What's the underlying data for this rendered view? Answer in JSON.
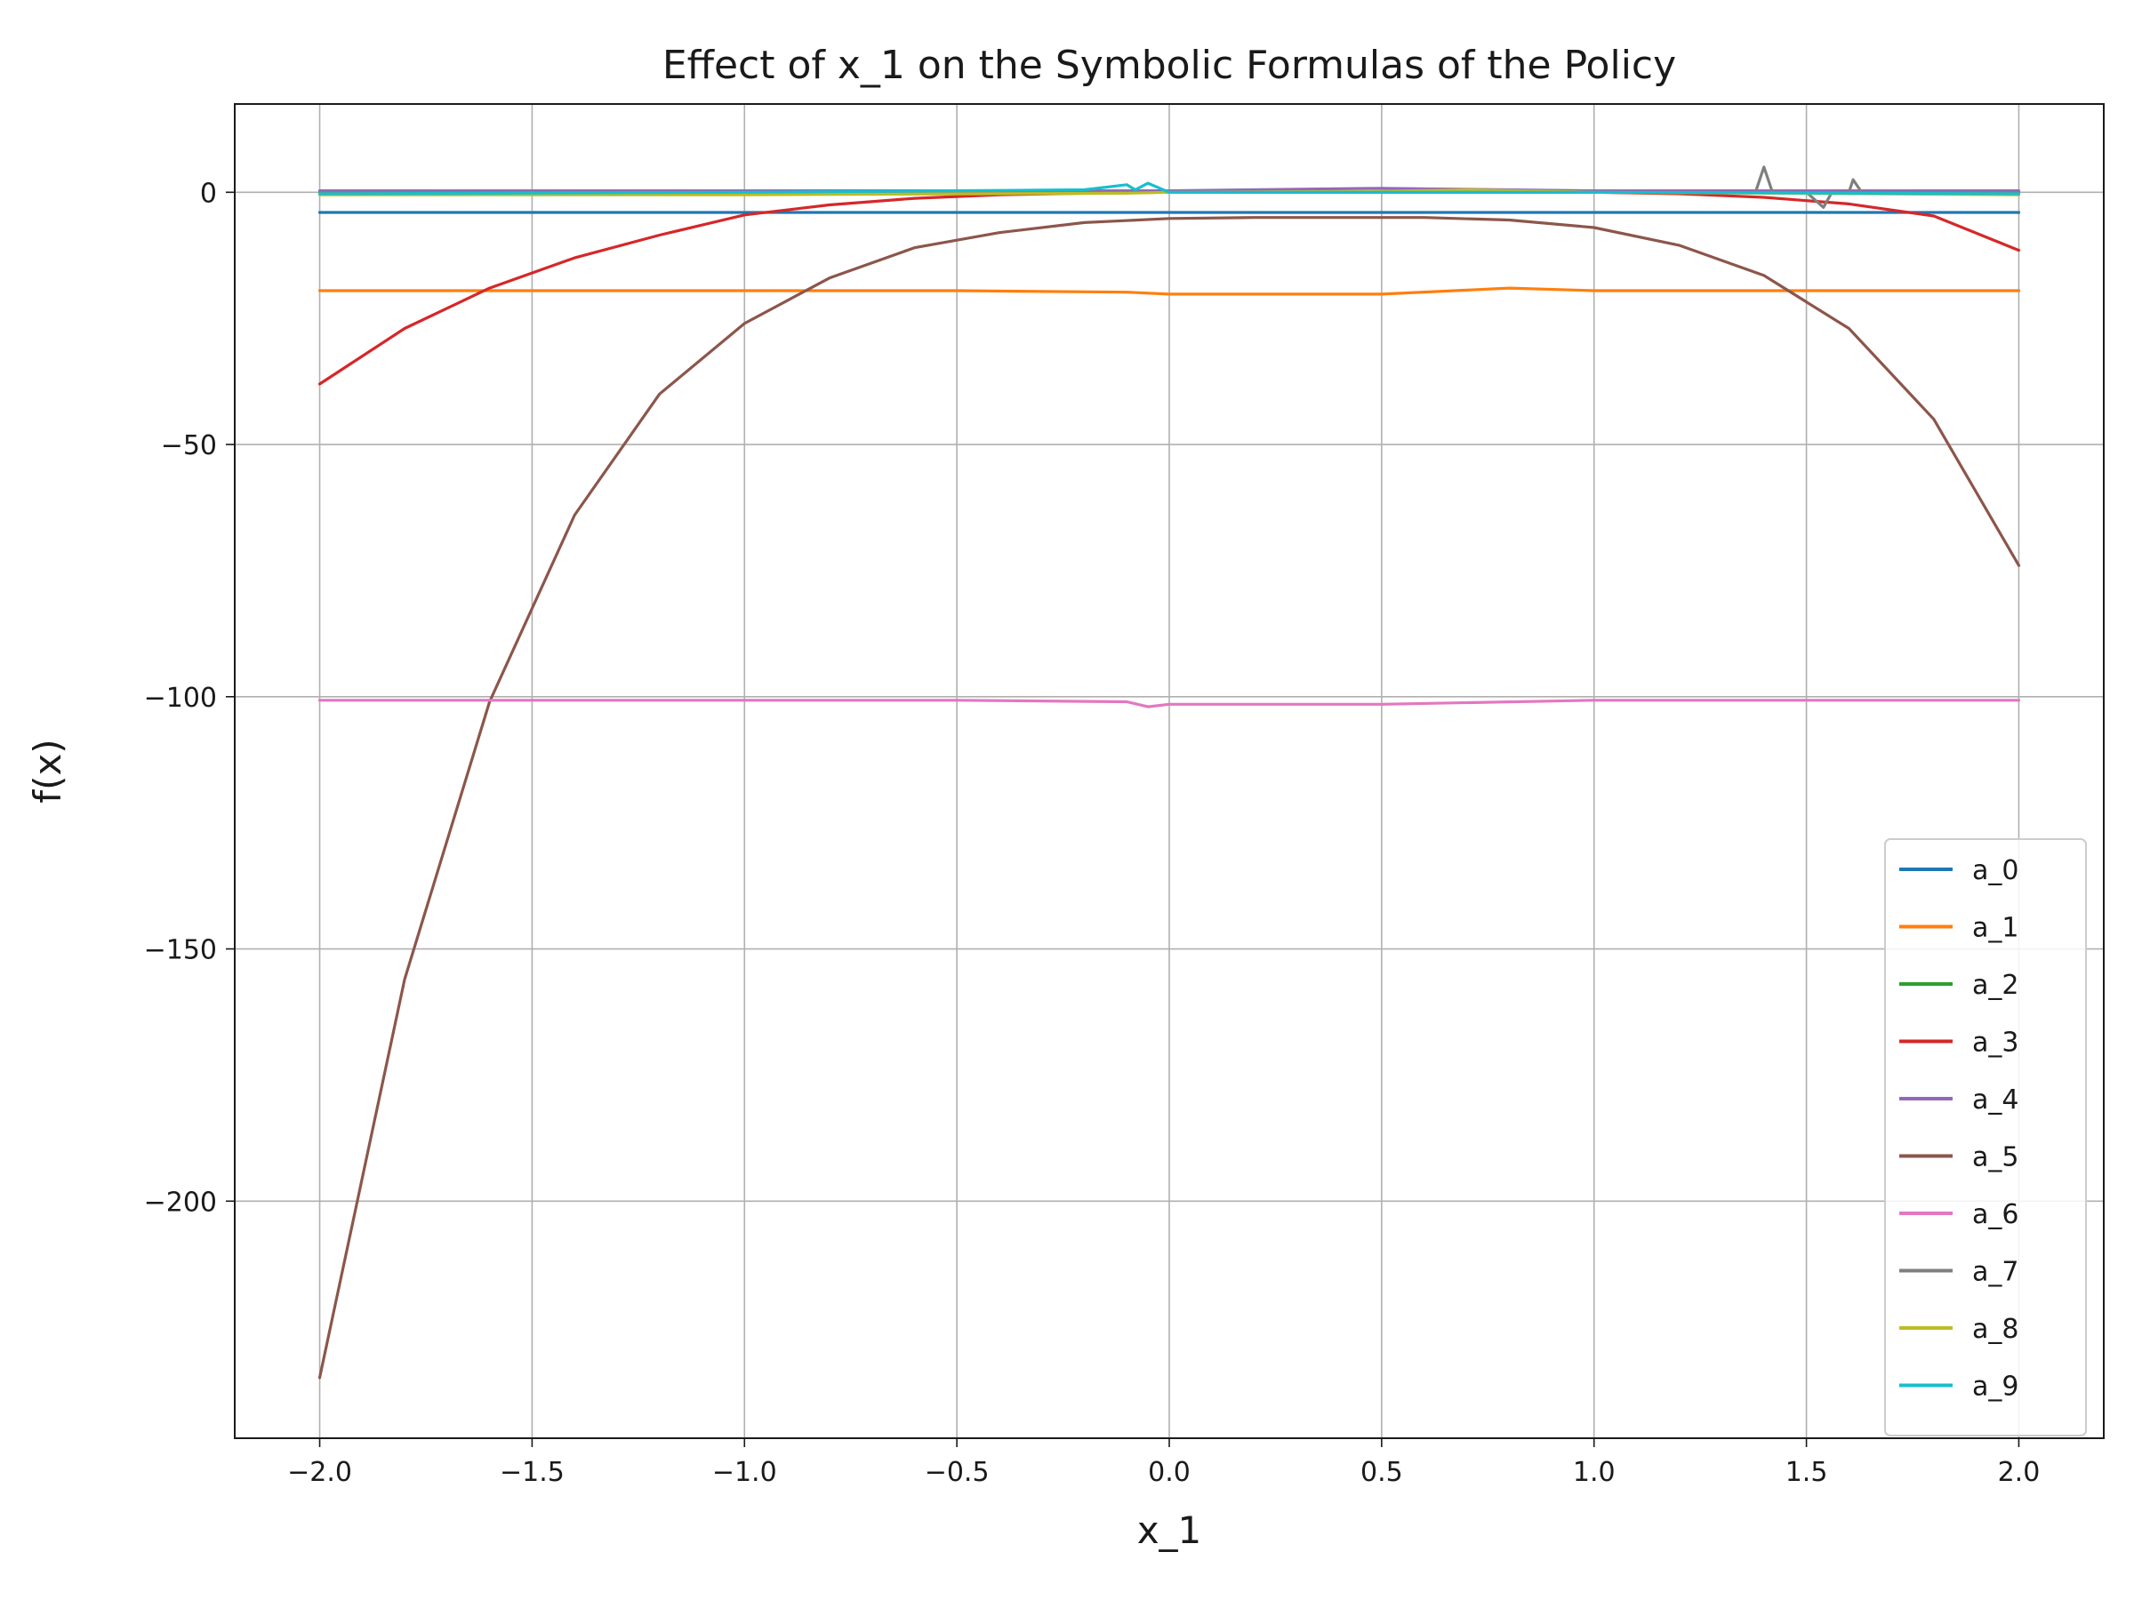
{
  "chart_data": {
    "type": "line",
    "title": "Effect of x_1 on the Symbolic Formulas of the Policy",
    "xlabel": "x_1",
    "ylabel": "f(x)",
    "xlim": [
      -2.2,
      2.2
    ],
    "ylim": [
      -247,
      17.5
    ],
    "xticks": [
      -2.0,
      -1.5,
      -1.0,
      -0.5,
      0.0,
      0.5,
      1.0,
      1.5,
      2.0
    ],
    "xtick_labels": [
      "−2.0",
      "−1.5",
      "−1.0",
      "−0.5",
      "0.0",
      "0.5",
      "1.0",
      "1.5",
      "2.0"
    ],
    "yticks": [
      0,
      -50,
      -100,
      -150,
      -200
    ],
    "ytick_labels": [
      "0",
      "−50",
      "−100",
      "−150",
      "−200"
    ],
    "grid": true,
    "legend_position": "lower-right",
    "series": [
      {
        "name": "a_0",
        "color": "#1f77b4",
        "x": [
          -2.0,
          -1.5,
          -1.0,
          -0.5,
          -0.1,
          0.0,
          0.5,
          1.0,
          1.5,
          2.0
        ],
        "y": [
          -4.0,
          -4.0,
          -4.0,
          -4.0,
          -4.0,
          -4.0,
          -4.0,
          -4.0,
          -4.0,
          -4.0
        ]
      },
      {
        "name": "a_1",
        "color": "#ff7f0e",
        "x": [
          -2.0,
          -1.5,
          -1.0,
          -0.5,
          -0.1,
          0.0,
          0.5,
          0.8,
          1.0,
          1.5,
          2.0
        ],
        "y": [
          -19.5,
          -19.5,
          -19.5,
          -19.5,
          -19.8,
          -20.2,
          -20.2,
          -19.0,
          -19.5,
          -19.5,
          -19.5
        ]
      },
      {
        "name": "a_2",
        "color": "#2ca02c",
        "x": [
          -2.0,
          -1.0,
          0.0,
          1.0,
          2.0
        ],
        "y": [
          0.0,
          0.0,
          0.0,
          0.0,
          0.0
        ]
      },
      {
        "name": "a_3",
        "color": "#d62728",
        "x": [
          -2.0,
          -1.8,
          -1.6,
          -1.4,
          -1.2,
          -1.0,
          -0.8,
          -0.6,
          -0.4,
          -0.2,
          0.0,
          0.5,
          1.0,
          1.2,
          1.4,
          1.6,
          1.8,
          2.0
        ],
        "y": [
          -38.0,
          -27.0,
          -19.0,
          -13.0,
          -8.5,
          -4.5,
          -2.5,
          -1.2,
          -0.5,
          -0.2,
          0.0,
          0.0,
          0.0,
          -0.3,
          -1.0,
          -2.3,
          -4.7,
          -11.5
        ]
      },
      {
        "name": "a_4",
        "color": "#9467bd",
        "x": [
          -2.0,
          -1.0,
          0.0,
          0.5,
          1.0,
          2.0
        ],
        "y": [
          0.3,
          0.3,
          0.3,
          0.8,
          0.3,
          0.3
        ]
      },
      {
        "name": "a_5",
        "color": "#8c564b",
        "x": [
          -2.0,
          -1.8,
          -1.6,
          -1.4,
          -1.2,
          -1.0,
          -0.8,
          -0.6,
          -0.4,
          -0.2,
          0.0,
          0.2,
          0.4,
          0.6,
          0.8,
          1.0,
          1.2,
          1.4,
          1.6,
          1.8,
          2.0
        ],
        "y": [
          -235.0,
          -156.0,
          -101.0,
          -64.0,
          -40.0,
          -26.0,
          -17.0,
          -11.0,
          -8.0,
          -6.0,
          -5.2,
          -5.0,
          -5.0,
          -5.0,
          -5.5,
          -7.0,
          -10.5,
          -16.5,
          -27.0,
          -45.0,
          -74.0
        ]
      },
      {
        "name": "a_6",
        "color": "#e377c2",
        "x": [
          -2.0,
          -1.0,
          -0.5,
          -0.1,
          -0.05,
          0.0,
          0.5,
          1.0,
          1.5,
          2.0
        ],
        "y": [
          -100.7,
          -100.7,
          -100.7,
          -101.0,
          -102.0,
          -101.5,
          -101.5,
          -100.7,
          -100.7,
          -100.7
        ]
      },
      {
        "name": "a_7",
        "color": "#7f7f7f",
        "x": [
          -2.0,
          -1.0,
          0.0,
          1.0,
          1.38,
          1.4,
          1.42,
          1.5,
          1.54,
          1.56,
          1.6,
          1.61,
          1.63,
          2.0
        ],
        "y": [
          0.0,
          0.0,
          0.0,
          0.0,
          0.0,
          5.0,
          0.0,
          0.0,
          -3.0,
          0.0,
          0.0,
          2.5,
          0.0,
          0.0
        ]
      },
      {
        "name": "a_8",
        "color": "#bcbd22",
        "x": [
          -2.0,
          -1.0,
          -0.1,
          0.0,
          0.5,
          0.7,
          1.0,
          2.0
        ],
        "y": [
          -0.5,
          -0.5,
          -0.2,
          0.0,
          0.2,
          0.5,
          0.0,
          -0.5
        ]
      },
      {
        "name": "a_9",
        "color": "#17becf",
        "x": [
          -2.0,
          -1.0,
          -0.2,
          -0.1,
          -0.08,
          -0.05,
          0.0,
          1.0,
          2.0
        ],
        "y": [
          -0.3,
          0.0,
          0.5,
          1.5,
          0.5,
          1.8,
          0.0,
          0.0,
          -0.3
        ]
      }
    ]
  }
}
